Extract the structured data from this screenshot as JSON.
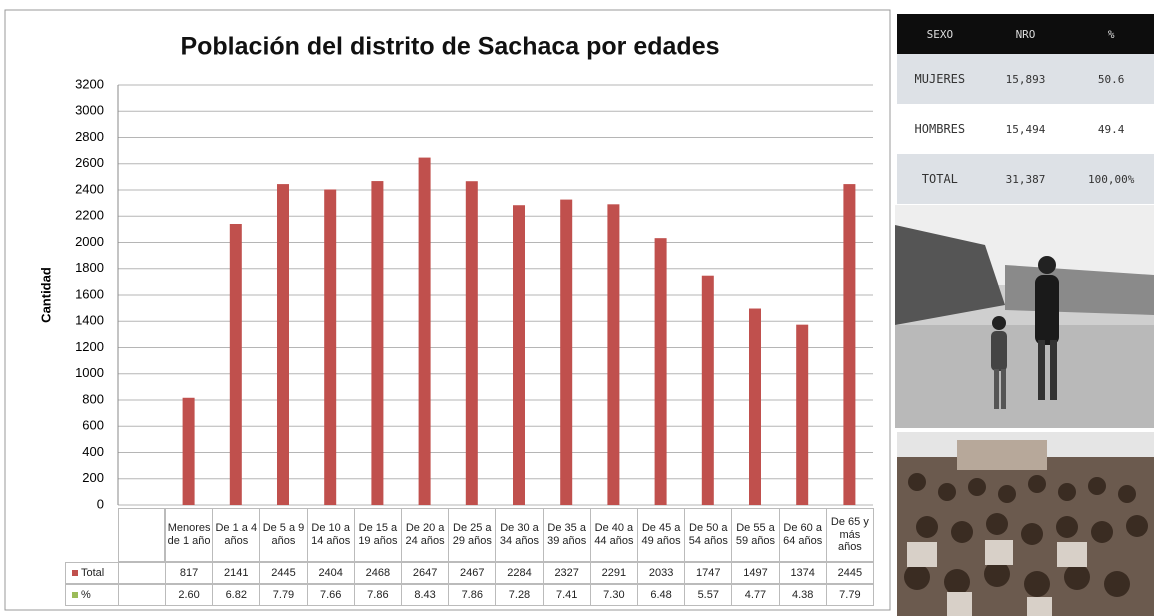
{
  "chart_data": {
    "type": "bar",
    "title": "Población del distrito de Sachaca por edades",
    "y_label": "Cantidad",
    "categories": [
      "Menores de 1 año",
      "De 1 a 4 años",
      "De 5 a 9 años",
      "De 10 a 14 años",
      "De 15 a 19 años",
      "De 20 a 24 años",
      "De 25 a 29 años",
      "De 30 a 34 años",
      "De 35 a 39 años",
      "De 40 a 44 años",
      "De 45 a 49 años",
      "De 50 a 54 años",
      "De 55 a 59 años",
      "De 60 a 64 años",
      "De 65 y más años"
    ],
    "series": [
      {
        "name": "Total",
        "color": "#c0504d",
        "values": [
          817,
          2141,
          2445,
          2404,
          2468,
          2647,
          2467,
          2284,
          2327,
          2291,
          2033,
          1747,
          1497,
          1374,
          2445
        ]
      },
      {
        "name": "%",
        "color": "#9bbb59",
        "values": [
          2.6,
          6.82,
          7.79,
          7.66,
          7.86,
          8.43,
          7.86,
          7.28,
          7.41,
          7.3,
          6.48,
          5.57,
          4.77,
          4.38,
          7.79
        ],
        "value_labels": [
          "2.60",
          "6.82",
          "7.79",
          "7.66",
          "7.86",
          "8.43",
          "7.86",
          "7.28",
          "7.41",
          "7.30",
          "6.48",
          "5.57",
          "4.77",
          "4.38",
          "7.79"
        ]
      }
    ],
    "ylim": [
      0,
      3200
    ],
    "yticks": [
      0,
      200,
      400,
      600,
      800,
      1000,
      1200,
      1400,
      1600,
      1800,
      2000,
      2200,
      2400,
      2600,
      2800,
      3000,
      3200
    ],
    "grid": true
  },
  "side_table": {
    "header": [
      "SEXO",
      "NRO",
      "%"
    ],
    "rows": [
      [
        "MUJERES",
        "15,893",
        "50.6"
      ],
      [
        "HOMBRES",
        "15,494",
        "49.4"
      ],
      [
        "TOTAL",
        "31,387",
        "100,00%"
      ]
    ]
  }
}
